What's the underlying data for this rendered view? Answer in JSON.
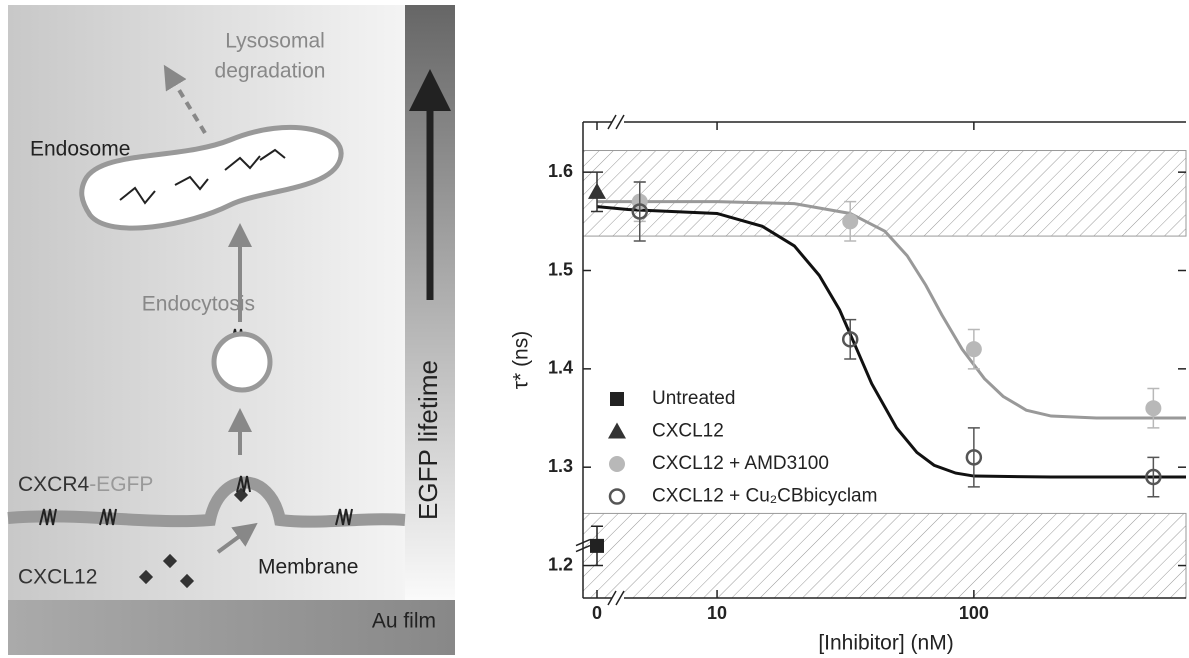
{
  "diagram": {
    "labels": {
      "lysosomal": "Lysosomal",
      "degradation": "degradation",
      "endosome": "Endosome",
      "endocytosis": "Endocytosis",
      "receptor": "CXCR4",
      "receptor_tag": "-EGFP",
      "ligand": "CXCL12",
      "membrane": "Membrane",
      "film": "Au film",
      "lifetime": "EGFP lifetime"
    }
  },
  "chart_data": {
    "type": "scatter",
    "x_label": "[Inhibitor] (nM)",
    "y_label": "τ* (ns)",
    "xlim": [
      4.5,
      670
    ],
    "ylim": [
      1.167,
      1.651
    ],
    "log_x": true,
    "x_break": true,
    "xticks": [
      0,
      10,
      100
    ],
    "yticks": [
      1.2,
      1.3,
      1.4,
      1.5,
      1.6
    ],
    "bands": [
      [
        1.535,
        1.622
      ],
      [
        1.167,
        1.253
      ]
    ],
    "series": [
      {
        "name": "Untreated",
        "marker": "square",
        "color": "#222222",
        "x": [
          0
        ],
        "values": [
          1.22
        ],
        "errors": [
          0.02
        ]
      },
      {
        "name": "CXCL12",
        "marker": "triangle",
        "color": "#333333",
        "x": [
          0
        ],
        "values": [
          1.58
        ],
        "errors": [
          0.02
        ]
      },
      {
        "name": "CXCL12 + AMD3100",
        "marker": "circle",
        "color": "#b8b8b8",
        "x": [
          5,
          33,
          100,
          500
        ],
        "values": [
          1.57,
          1.55,
          1.42,
          1.36
        ],
        "errors": [
          0.02,
          0.02,
          0.02,
          0.02
        ]
      },
      {
        "name": "CXCL12 + Cu₂CBbicyclam",
        "marker": "open-circle",
        "color": "#555555",
        "x": [
          5,
          33,
          100,
          500
        ],
        "values": [
          1.56,
          1.43,
          1.31,
          1.29
        ],
        "errors": [
          0.03,
          0.02,
          0.03,
          0.02
        ]
      }
    ],
    "fits": [
      {
        "color": "#111111",
        "x": [
          0,
          4.5,
          10,
          15,
          20,
          25,
          30,
          35,
          40,
          50,
          60,
          70,
          85,
          100,
          200,
          670
        ],
        "values": [
          1.565,
          1.562,
          1.558,
          1.545,
          1.525,
          1.495,
          1.46,
          1.42,
          1.385,
          1.34,
          1.315,
          1.302,
          1.294,
          1.291,
          1.29,
          1.29
        ]
      },
      {
        "color": "#999999",
        "x": [
          0,
          4.5,
          10,
          20,
          33,
          45,
          55,
          65,
          75,
          90,
          110,
          130,
          160,
          200,
          300,
          670
        ],
        "values": [
          1.57,
          1.57,
          1.57,
          1.568,
          1.558,
          1.54,
          1.515,
          1.485,
          1.455,
          1.42,
          1.39,
          1.372,
          1.358,
          1.352,
          1.35,
          1.35
        ]
      }
    ]
  }
}
